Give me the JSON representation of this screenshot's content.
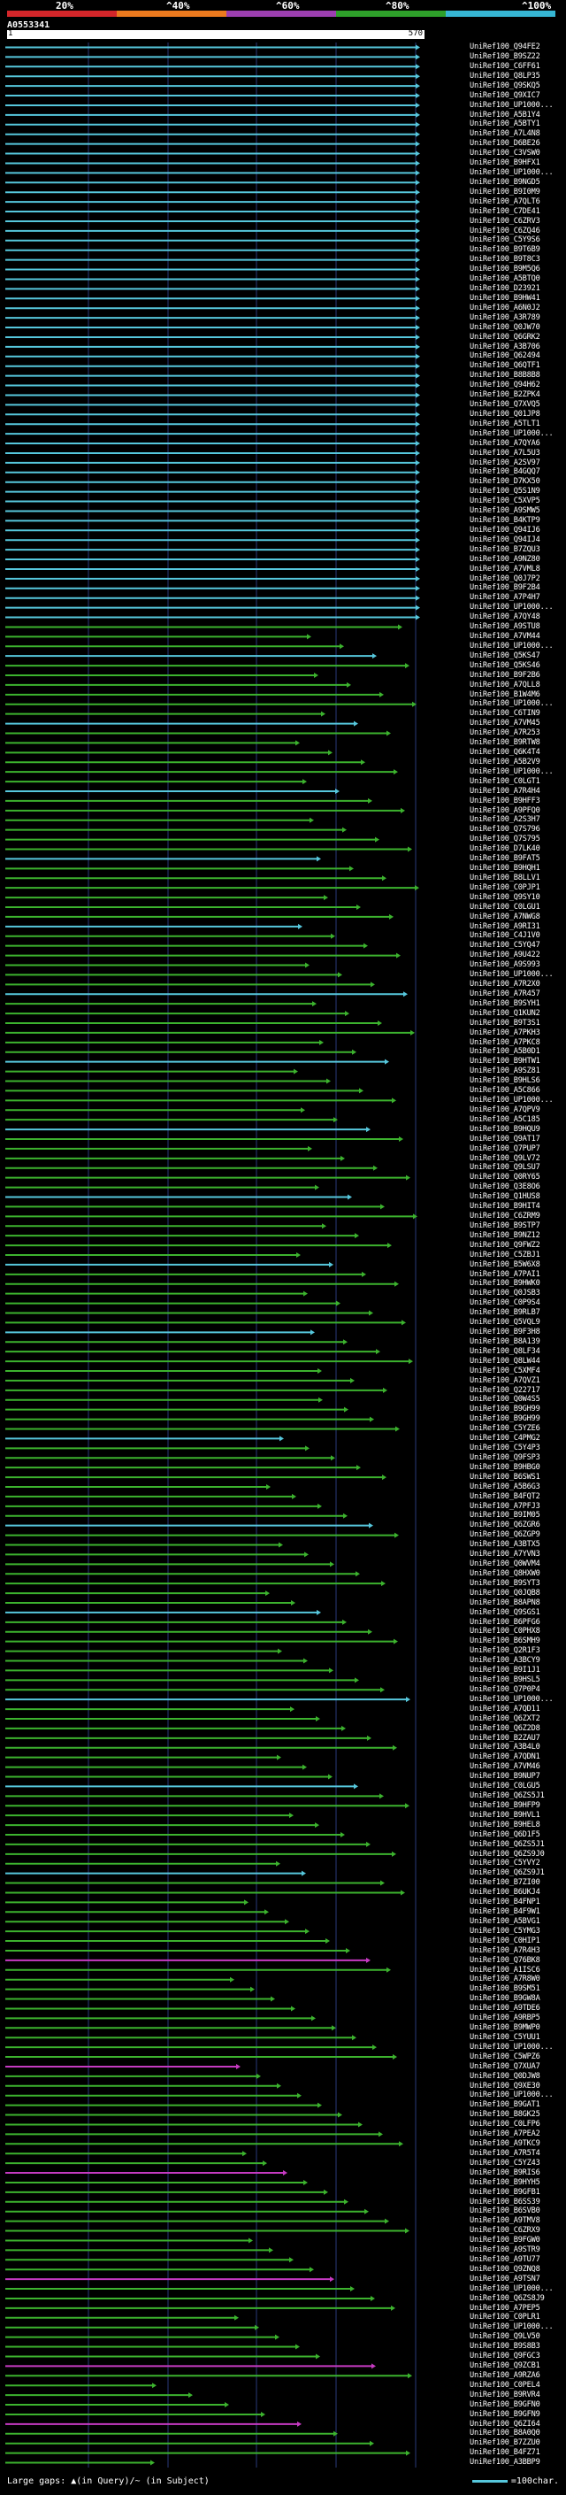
{
  "header": {
    "percent_labels": [
      "20%",
      "^40%",
      "^60%",
      "^80%",
      "^100%"
    ],
    "colorbar": [
      "#d4262a",
      "#ec7a1e",
      "#9c3fb0",
      "#2ea02a",
      "#36b6d3"
    ],
    "query_id": "A0553341",
    "ruler_start": "1",
    "ruler_end": "570"
  },
  "colors": {
    "cyan": "#56c7dc",
    "green": "#3cb22e",
    "magenta": "#c63ac2",
    "gridline": "#2a3a7a"
  },
  "hits": [
    "UniRef100_Q94FE2",
    "UniRef100_B9SZ22",
    "UniRef100_C6FF61",
    "UniRef100_Q8LP35",
    "UniRef100_Q9SKQ5",
    "UniRef100_Q9XIC7",
    "UniRef100_UP1000...",
    "UniRef100_A5B1Y4",
    "UniRef100_A5BTY1",
    "UniRef100_A7L4N8",
    "UniRef100_D6BE26",
    "UniRef100_C3VSW0",
    "UniRef100_B9HFX1",
    "UniRef100_UP1000...",
    "UniRef100_B9NGD5",
    "UniRef100_B9I0M9",
    "UniRef100_A7QLT6",
    "UniRef100_C7DE41",
    "UniRef100_C6ZRV3",
    "UniRef100_C6ZQ46",
    "UniRef100_C5Y9S6",
    "UniRef100_B9T6B9",
    "UniRef100_B9T8C3",
    "UniRef100_B9M5Q6",
    "UniRef100_A5BTQ0",
    "UniRef100_D23921",
    "UniRef100_B9HW41",
    "UniRef100_A6N0J2",
    "UniRef100_A3R789",
    "UniRef100_Q0JW70",
    "UniRef100_Q6GRK2",
    "UniRef100_A3B706",
    "UniRef100_Q62494",
    "UniRef100_Q6QTF1",
    "UniRef100_B8B8B8",
    "UniRef100_Q94H62",
    "UniRef100_B2ZPK4",
    "UniRef100_Q7XVQ5",
    "UniRef100_Q01JP8",
    "UniRef100_A5TLT1",
    "UniRef100_UP1000...",
    "UniRef100_A7QYA6",
    "UniRef100_A7L5U3",
    "UniRef100_A2SV97",
    "UniRef100_B4GQQ7",
    "UniRef100_D7KX50",
    "UniRef100_Q5S1N9",
    "UniRef100_C5XVP5",
    "UniRef100_A9SMW5",
    "UniRef100_B4KTP9",
    "UniRef100_Q94IJ6",
    "UniRef100_Q94IJ4",
    "UniRef100_B7ZQU3",
    "UniRef100_A9NZ80",
    "UniRef100_A7VML8",
    "UniRef100_Q0J7P2",
    "UniRef100_B9F2B4",
    "UniRef100_A7P4H7",
    "UniRef100_UP1000...",
    "UniRef100_A7QY48",
    "UniRef100_A9STU8",
    "UniRef100_A7VM44",
    "UniRef100_UP1000...",
    "UniRef100_Q5KS47",
    "UniRef100_Q5KS46",
    "UniRef100_B9F2B6",
    "UniRef100_A7QLL8",
    "UniRef100_B1W4M6",
    "UniRef100_UP1000...",
    "UniRef100_C6TIN9",
    "UniRef100_A7VM45",
    "UniRef100_A7R253",
    "UniRef100_B9RTW8",
    "UniRef100_Q6K4T4",
    "UniRef100_A5B2V9",
    "UniRef100_UP1000...",
    "UniRef100_C0LGT1",
    "UniRef100_A7R4H4",
    "UniRef100_B9HFF3",
    "UniRef100_A9PFQ0",
    "UniRef100_A2S3H7",
    "UniRef100_Q7S796",
    "UniRef100_Q7S795",
    "UniRef100_D7LK40",
    "UniRef100_B9FAT5",
    "UniRef100_B9HQH1",
    "UniRef100_B8LLV1",
    "UniRef100_C0PJP1",
    "UniRef100_Q9SY10",
    "UniRef100_C0LGU1",
    "UniRef100_A7NWG8",
    "UniRef100_A9RI31",
    "UniRef100_C4J1V0",
    "UniRef100_C5YQ47",
    "UniRef100_A9U422",
    "UniRef100_A9S993",
    "UniRef100_UP1000...",
    "UniRef100_A7R2X0",
    "UniRef100_A7R457",
    "UniRef100_B9SYH1",
    "UniRef100_Q1KUN2",
    "UniRef100_B9T3S1",
    "UniRef100_A7PKH3",
    "UniRef100_A7PKC8",
    "UniRef100_A5B0D1",
    "UniRef100_B9HTW1",
    "UniRef100_A9SZ81",
    "UniRef100_B9HLS6",
    "UniRef100_A5C866",
    "UniRef100_UP1000...",
    "UniRef100_A7QPV9",
    "UniRef100_A5C185",
    "UniRef100_B9HQU9",
    "UniRef100_Q9AT17",
    "UniRef100_Q7PUP7",
    "UniRef100_Q9LV72",
    "UniRef100_Q9LSU7",
    "UniRef100_Q0RY65",
    "UniRef100_Q3E8O6",
    "UniRef100_Q1HUS8",
    "UniRef100_B9HIT4",
    "UniRef100_C6ZRM9",
    "UniRef100_B9STP7",
    "UniRef100_B9NZ12",
    "UniRef100_Q9FWZ2",
    "UniRef100_C5ZBJ1",
    "UniRef100_B5W6X8",
    "UniRef100_A7PAI1",
    "UniRef100_B9HWK0",
    "UniRef100_Q0JSB3",
    "UniRef100_C0P9S4",
    "UniRef100_B9RLB7",
    "UniRef100_Q5VQL9",
    "UniRef100_B9F3H8",
    "UniRef100_B8A139",
    "UniRef100_Q8LF34",
    "UniRef100_Q8LW44",
    "UniRef100_C5XMF4",
    "UniRef100_A7QVZ1",
    "UniRef100_Q22717",
    "UniRef100_Q0W4S5",
    "UniRef100_B9GH99",
    "UniRef100_B9GH99",
    "UniRef100_C5YZE6",
    "UniRef100_C4PMG2",
    "UniRef100_C5Y4P3",
    "UniRef100_Q9FSP3",
    "UniRef100_B9HBG0",
    "UniRef100_B6SWS1",
    "UniRef100_A5B6G3",
    "UniRef100_B4FQT2",
    "UniRef100_A7PFJ3",
    "UniRef100_B9IM05",
    "UniRef100_Q6ZGR6",
    "UniRef100_Q6ZGP9",
    "UniRef100_A3BTX5",
    "UniRef100_A7YVN3",
    "UniRef100_Q0WVM4",
    "UniRef100_Q8HXW0",
    "UniRef100_B9SYT3",
    "UniRef100_Q0JQB8",
    "UniRef100_B8APN8",
    "UniRef100_Q9SGS1",
    "UniRef100_B6PFG6",
    "UniRef100_C0PHX8",
    "UniRef100_B6SMH9",
    "UniRef100_Q2R1F3",
    "UniRef100_A3BCY9",
    "UniRef100_B9I1J1",
    "UniRef100_B9HSL5",
    "UniRef100_Q7P0P4",
    "UniRef100_UP1000...",
    "UniRef100_A7QD11",
    "UniRef100_Q6ZXT2",
    "UniRef100_Q6Z2D8",
    "UniRef100_B2ZAU7",
    "UniRef100_A3B4L0",
    "UniRef100_A7QDN1",
    "UniRef100_A7VM46",
    "UniRef100_B9NUP7",
    "UniRef100_C0LGU5",
    "UniRef100_Q6ZS5J1",
    "UniRef100_B9HFP9",
    "UniRef100_B9HVL1",
    "UniRef100_B9HEL8",
    "UniRef100_Q6D1F5",
    "UniRef100_Q6ZS5J1",
    "UniRef100_Q6ZS9J0",
    "UniRef100_C5YVY2",
    "UniRef100_Q6ZS9J1",
    "UniRef100_B7ZI00",
    "UniRef100_B6UKJ4",
    "UniRef100_B4FNP1",
    "UniRef100_B4F9W1",
    "UniRef100_A5BVG1",
    "UniRef100_C5YMG3",
    "UniRef100_C0HIP1",
    "UniRef100_A7R4H3",
    "UniRef100_Q76BK8",
    "UniRef100_A1ISC6",
    "UniRef100_A7R8W0",
    "UniRef100_B9SM51",
    "UniRef100_B9GW8A",
    "UniRef100_A9TDE6",
    "UniRef100_A9RBP5",
    "UniRef100_B9MWP0",
    "UniRef100_C5YUU1",
    "UniRef100_UP1000...",
    "UniRef100_C5WPZ6",
    "UniRef100_Q7XUA7",
    "UniRef100_Q0DJW8",
    "UniRef100_Q9XE30",
    "UniRef100_UP1000...",
    "UniRef100_B9GAT1",
    "UniRef100_B8GK25",
    "UniRef100_C0LFP6",
    "UniRef100_A7PEA2",
    "UniRef100_A9TKC9",
    "UniRef100_A7R5T4",
    "UniRef100_C5YZ43",
    "UniRef100_B9RIS6",
    "UniRef100_B9HYH5",
    "UniRef100_B9GFB1",
    "UniRef100_B6SS39",
    "UniRef100_B6SVB0",
    "UniRef100_A9TMV8",
    "UniRef100_C6ZRX9",
    "UniRef100_B9FGW0",
    "UniRef100_A9STR9",
    "UniRef100_A9TU77",
    "UniRef100_Q9ZNQ8",
    "UniRef100_A9TSN7",
    "UniRef100_UP1000...",
    "UniRef100_Q6ZS8J9",
    "UniRef100_A7PEP5",
    "UniRef100_C0PLR1",
    "UniRef100_UP1000...",
    "UniRef100_Q9LV50",
    "UniRef100_B9S8B3",
    "UniRef100_Q9FGC3",
    "UniRef100_Q9ZCB1",
    "UniRef100_A9RZA6",
    "UniRef100_C0PEL4",
    "UniRef100_B9RVR4",
    "UniRef100_B9GFN0",
    "UniRef100_B9GFN9",
    "UniRef100_Q6ZI64",
    "UniRef100_B8A0Q0",
    "UniRef100_B7ZZU0",
    "UniRef100_B4FZ71",
    "UniRef100_A3BBP9"
  ],
  "footer": {
    "large_gaps": "Large gaps: ▲(in Query)/~ (in Subject)",
    "scale": "=100char."
  }
}
